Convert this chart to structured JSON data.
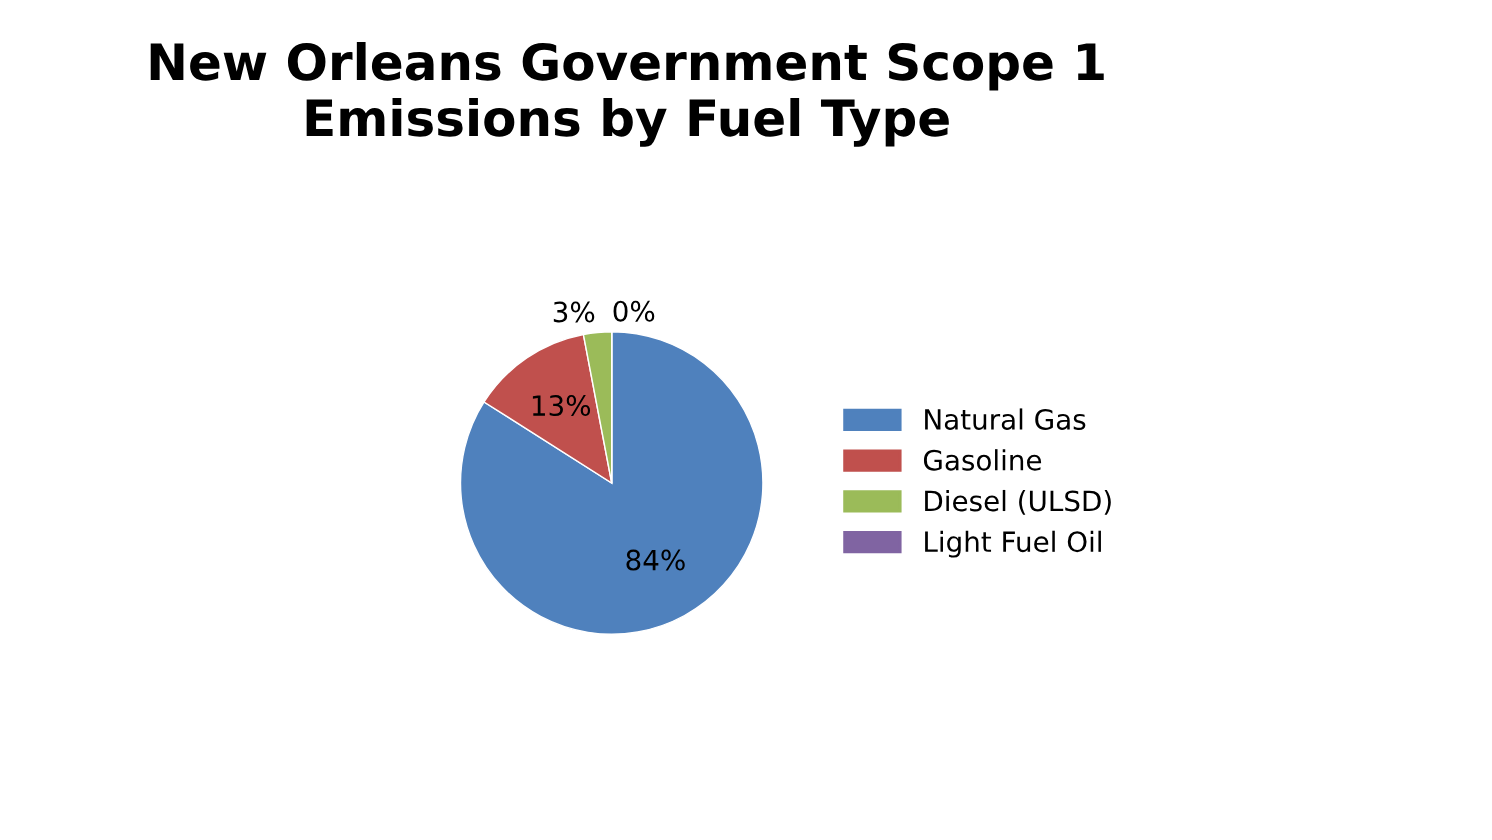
{
  "chart_data": {
    "type": "pie",
    "title": "New Orleans Government Scope 1\nEmissions by Fuel Type",
    "categories": [
      "Natural Gas",
      "Gasoline",
      "Diesel (ULSD)",
      "Light Fuel Oil"
    ],
    "values": [
      84,
      13,
      3,
      0
    ],
    "value_labels": [
      "84%",
      "13%",
      "3%",
      "0%"
    ],
    "colors": [
      "#4f81bd",
      "#c0504d",
      "#9bbb59",
      "#8064a2"
    ],
    "legend": "right"
  }
}
